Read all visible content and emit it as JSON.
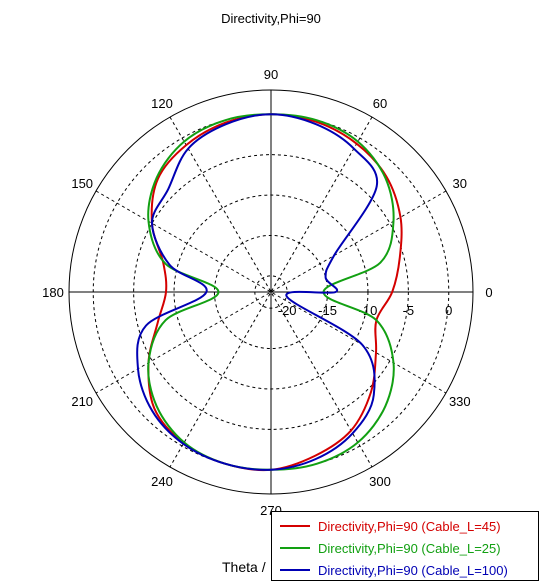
{
  "chart_data": {
    "type": "polar-line",
    "title": "Directivity,Phi=90",
    "xlabel": "Theta /",
    "angle_ticks": [
      "0",
      "30",
      "60",
      "90",
      "120",
      "150",
      "180",
      "210",
      "240",
      "270",
      "300",
      "330"
    ],
    "radial_ticks": [
      "-20",
      "-15",
      "-10",
      "-5",
      "0"
    ],
    "r_min": -22,
    "r_max": 3,
    "angle_grid_step_deg": 30,
    "theta_deg": [
      0,
      15,
      30,
      45,
      60,
      75,
      90,
      105,
      120,
      135,
      150,
      165,
      180,
      195,
      210,
      225,
      240,
      255,
      270,
      285,
      300,
      315,
      330,
      345
    ],
    "series": [
      {
        "name": "Directivity,Phi=90 (Cable_L=45)",
        "color": "#d40000",
        "values": [
          -7,
          -5.5,
          -3.5,
          -1.8,
          -0.8,
          -0.2,
          0,
          -0.3,
          -1,
          -2.2,
          -5,
          -8.2,
          -9,
          -7.5,
          -4.5,
          -1.6,
          -0.4,
          0,
          0,
          -1,
          -2.2,
          -4.5,
          -7,
          -8.5
        ]
      },
      {
        "name": "Directivity,Phi=90 (Cable_L=25)",
        "color": "#12a012",
        "values": [
          -15.5,
          -8,
          -4.5,
          -2,
          -0.5,
          0,
          0,
          0,
          -0.5,
          -2,
          -4.5,
          -8.5,
          -15.5,
          -8.5,
          -4.5,
          -2,
          -0.5,
          0,
          0,
          0,
          -0.5,
          -2,
          -4.5,
          -8.5
        ]
      },
      {
        "name": "Directivity,Phi=90 (Cable_L=100)",
        "color": "#0000b4",
        "values": [
          -14,
          -15,
          -13,
          -3.5,
          -1.5,
          -0.5,
          0,
          -0.5,
          -1.5,
          -4,
          -5,
          -9,
          -14,
          -6,
          -3,
          -1.2,
          -0.3,
          0,
          0,
          -0.6,
          -1.8,
          -4,
          -9,
          -20
        ]
      }
    ]
  }
}
